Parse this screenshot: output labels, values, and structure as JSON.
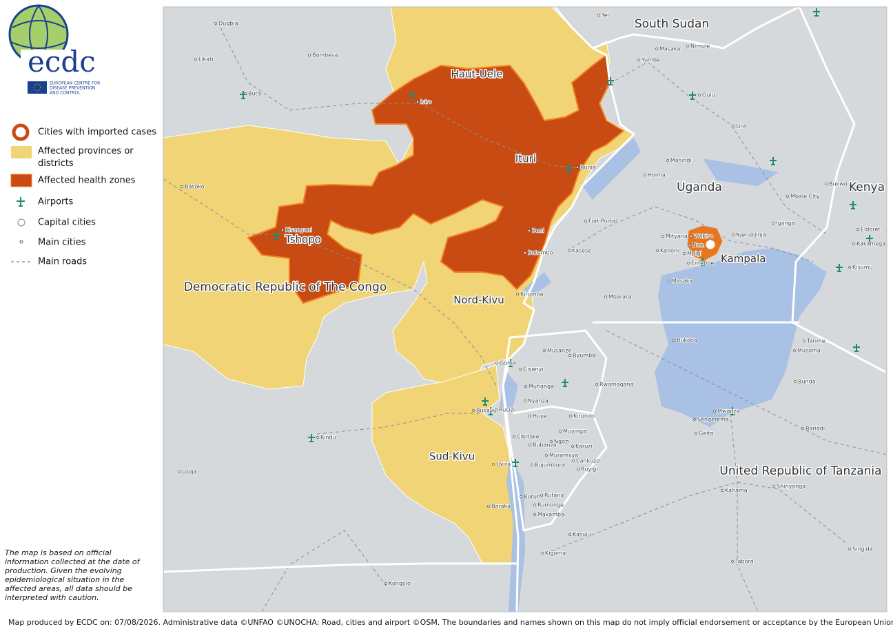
{
  "logo": {
    "name": "ecdc",
    "org_lines": [
      "EUROPEAN CENTRE FOR",
      "DISEASE PREVENTION",
      "AND CONTROL"
    ]
  },
  "legend": {
    "items": [
      "Cities with imported cases",
      "Affected provinces or districts",
      "Affected health zones",
      "Airports",
      "Capital cities",
      "Main cities",
      "Main roads"
    ]
  },
  "note": "The map is based on official information collected at the date of production. Given the evolving epidemiological situation in the affected areas, all data should be interpreted with caution.",
  "footer": "Map produced by ECDC on: 07/08/2026. Administrative data ©UNFAO  ©UNOCHA;  Road, cities and airport ©OSM. The boundaries and names shown on this map do not imply official endorsement or acceptance by the European Union.",
  "map": {
    "countries": [
      "South Sudan",
      "Uganda",
      "Kenya",
      "Democratic Republic of The Congo",
      "United Republic of Tanzania"
    ],
    "provinces": [
      "Haut-Uele",
      "Ituri",
      "Tshopo",
      "Nord-Kivu",
      "Sud-Kivu"
    ],
    "capital": "Kampala",
    "cities": [
      "Dugbia",
      "Bambesa",
      "Likati",
      "Buta",
      "Isiro",
      "Basoko",
      "Kisangani",
      "Bunia",
      "Beni",
      "Butembo",
      "Kirumba",
      "Kasese",
      "Fort Portal",
      "Hoima",
      "Masindi",
      "Gulu",
      "Lira",
      "Yei",
      "Masaka",
      "Nimule",
      "Yumbe",
      "Mbale City",
      "Bukwo",
      "Jinja",
      "Njeru",
      "Iganga",
      "Mityana",
      "Wakiso",
      "Nansana",
      "Kanoni",
      "Mpigi",
      "Entebbe",
      "Masaka",
      "Mbarara",
      "Eldoret",
      "Kakamega",
      "Kisumu",
      "Tarime",
      "Musoma",
      "Bunda",
      "Bukoba",
      "Mwanza",
      "Sengerema",
      "Geita",
      "Bariadi",
      "Kahama",
      "Shinyanga",
      "Singida",
      "Tabora",
      "Kasulu",
      "Kigoma",
      "Kongolo",
      "Lodja",
      "Kindu",
      "Uvira",
      "Baraka",
      "Bukavu",
      "Rusizi",
      "Goma",
      "Gisenyi",
      "Musanze",
      "Byumba",
      "Muhanga",
      "Rwamagana",
      "Nyanza",
      "Huye",
      "Kirundo",
      "Cibitoke",
      "Muyinga",
      "Ngozi",
      "Bubanza",
      "Karuzi",
      "Muramvya",
      "Cankuzo",
      "Bujumbura",
      "Ruyigi",
      "Bururi",
      "Rutana",
      "Rumonge",
      "Makamba"
    ]
  }
}
